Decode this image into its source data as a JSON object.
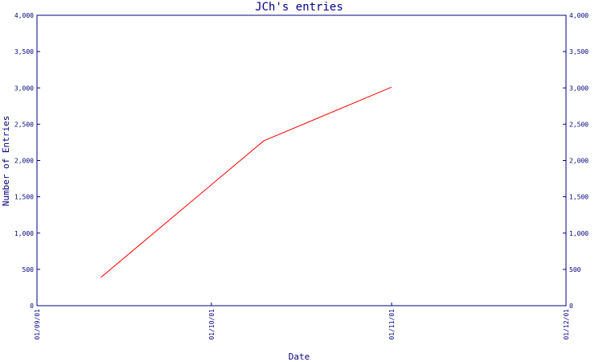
{
  "colors": {
    "axis": "#000080",
    "text": "#000080",
    "line": "#ff0000",
    "background": "#ffffff"
  },
  "chart_data": {
    "type": "line",
    "title": "JCh's entries",
    "xlabel": "Date",
    "ylabel": "Number of Entries",
    "x_tick_labels": [
      "01/09/01",
      "01/10/01",
      "01/11/01",
      "01/12/01"
    ],
    "xlim": [
      "2001-09-01",
      "2001-12-01"
    ],
    "y_ticks": [
      0,
      500,
      1000,
      1500,
      2000,
      2500,
      3000,
      3500,
      4000
    ],
    "y_tick_labels": [
      "0",
      "500",
      "1,000",
      "1,500",
      "2,000",
      "2,500",
      "3,000",
      "3,500",
      "4,000"
    ],
    "ylim": [
      0,
      4000
    ],
    "grid": false,
    "right_axis_mirrored": true,
    "series": [
      {
        "x": [
          "2001-09-12",
          "2001-10-10",
          "2001-11-01"
        ],
        "y": [
          390,
          2270,
          3010
        ]
      }
    ]
  }
}
